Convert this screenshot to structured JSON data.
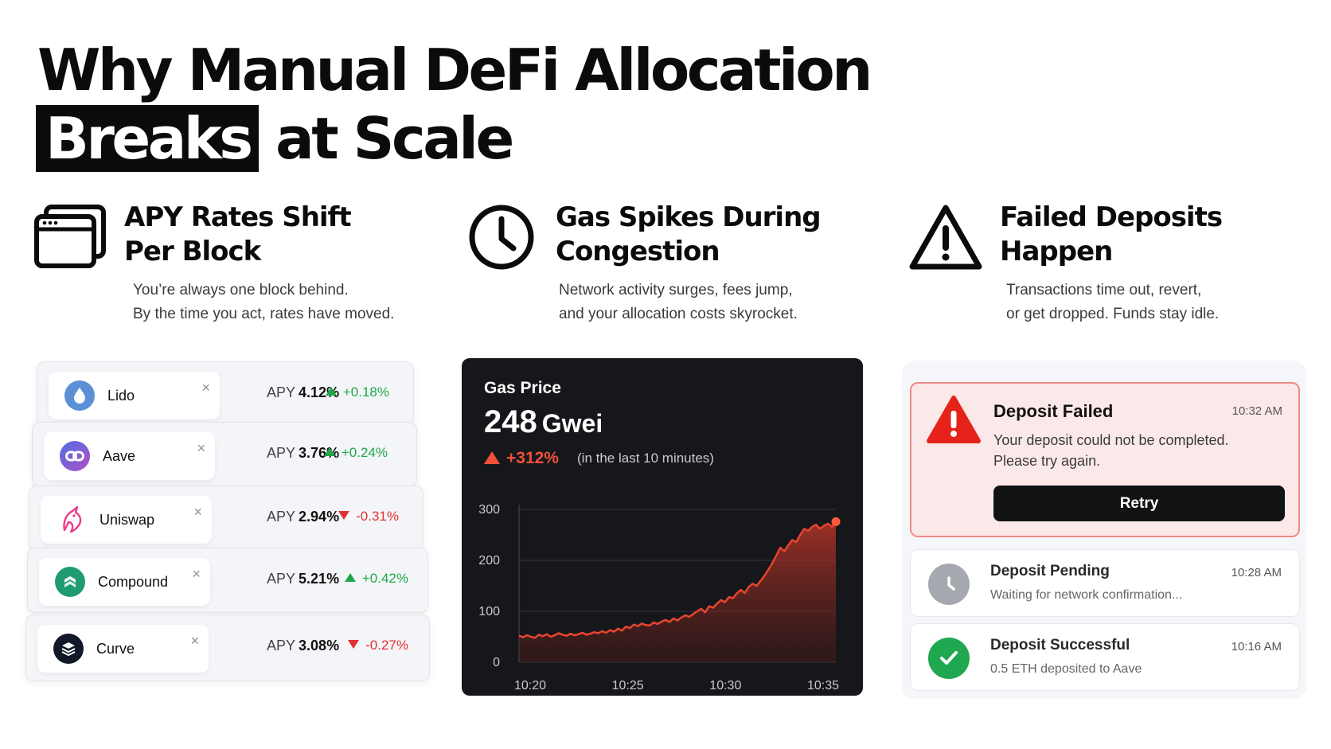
{
  "headline": {
    "line1": "Why Manual DeFi Allocation",
    "highlight": "Breaks",
    "line2_rest": " at Scale"
  },
  "columns": [
    {
      "icon": "browser-windows-icon",
      "title_line1": "APY Rates Shift",
      "title_line2": "Per Block",
      "desc_line1": "You’re always one block behind.",
      "desc_line2": "By the time you act, rates have moved."
    },
    {
      "icon": "clock-icon",
      "title_line1": "Gas Spikes During",
      "title_line2": "Congestion",
      "desc_line1": "Network activity surges, fees jump,",
      "desc_line2": "and your allocation costs skyrocket."
    },
    {
      "icon": "warning-triangle-icon",
      "title_line1": "Failed Deposits",
      "title_line2": "Happen",
      "desc_line1": "Transactions time out, revert,",
      "desc_line2": "or get dropped. Funds stay idle."
    }
  ],
  "protocols": [
    {
      "name": "Lido",
      "apy_label": "APY",
      "apy": "4.12%",
      "change": "+0.18%",
      "direction": "up",
      "logo_color": "#5b8fd6",
      "logo_icon": "droplet-icon"
    },
    {
      "name": "Aave",
      "apy_label": "APY",
      "apy": "3.76%",
      "change": "+0.24%",
      "direction": "up",
      "logo_color": "#7b5bd6",
      "logo_icon": "link-icon"
    },
    {
      "name": "Uniswap",
      "apy_label": "APY",
      "apy": "2.94%",
      "change": "-0.31%",
      "direction": "down",
      "logo_color": "#ffffff",
      "logo_icon": "unicorn-icon"
    },
    {
      "name": "Compound",
      "apy_label": "APY",
      "apy": "5.21%",
      "change": "+0.42%",
      "direction": "up",
      "logo_color": "#1f9b73",
      "logo_icon": "layers-icon"
    },
    {
      "name": "Curve",
      "apy_label": "APY",
      "apy": "3.08%",
      "change": "-0.27%",
      "direction": "down",
      "logo_color": "#111827",
      "logo_icon": "stack-icon"
    }
  ],
  "close_glyph": "×",
  "gas": {
    "label": "Gas Price",
    "value": "248",
    "unit": "Gwei",
    "change": "+312%",
    "note": "(in the last 10 minutes)"
  },
  "chart_data": {
    "type": "area",
    "title": "Gas Price",
    "x": [
      0,
      0.5,
      1,
      1.5,
      2,
      2.5,
      3,
      3.5,
      4,
      4.5,
      5,
      5.5,
      6,
      6.5,
      7,
      7.5,
      8,
      8.5,
      9,
      9.5,
      10,
      10.5,
      11,
      11.5,
      12,
      12.5,
      13,
      13.5,
      14,
      14.5,
      15,
      15.5,
      16,
      16.5,
      17,
      17.5,
      18,
      18.5,
      19,
      19.5,
      20,
      20.5,
      21,
      21.5,
      22,
      22.5,
      23,
      23.5,
      24,
      24.5,
      25,
      25.5,
      26,
      26.5,
      27,
      27.5,
      28,
      28.5,
      29,
      29.5,
      30,
      30.5,
      31,
      31.5,
      32,
      32.5,
      33,
      33.5,
      34,
      34.5,
      35,
      35.5,
      36,
      36.5,
      37,
      37.5,
      38,
      38.5,
      39,
      39.5,
      40
    ],
    "values": [
      52,
      49,
      53,
      50,
      48,
      54,
      51,
      55,
      50,
      53,
      57,
      54,
      52,
      56,
      53,
      55,
      58,
      54,
      56,
      59,
      57,
      61,
      58,
      63,
      60,
      66,
      62,
      70,
      67,
      74,
      71,
      76,
      73,
      72,
      78,
      75,
      80,
      83,
      79,
      86,
      82,
      88,
      92,
      89,
      95,
      100,
      105,
      98,
      110,
      107,
      115,
      122,
      118,
      128,
      126,
      135,
      142,
      136,
      148,
      154,
      150,
      160,
      170,
      182,
      195,
      210,
      225,
      218,
      230,
      240,
      236,
      250,
      262,
      258,
      266,
      270,
      262,
      268,
      272,
      266,
      276
    ],
    "x_ticks": [
      "10:20",
      "10:25",
      "10:30",
      "10:35"
    ],
    "y_ticks": [
      0,
      100,
      200,
      300
    ],
    "ylim": [
      0,
      300
    ],
    "line_color": "#e8452e",
    "grid": true
  },
  "deposits": {
    "failed": {
      "title": "Deposit Failed",
      "time": "10:32 AM",
      "line1": "Your deposit could not be completed.",
      "line2": "Please try again.",
      "button": "Retry"
    },
    "pending": {
      "title": "Deposit Pending",
      "time": "10:28 AM",
      "subtitle": "Waiting for network confirmation..."
    },
    "success": {
      "title": "Deposit Successful",
      "time": "10:16 AM",
      "subtitle": "0.5 ETH deposited to Aave"
    }
  }
}
